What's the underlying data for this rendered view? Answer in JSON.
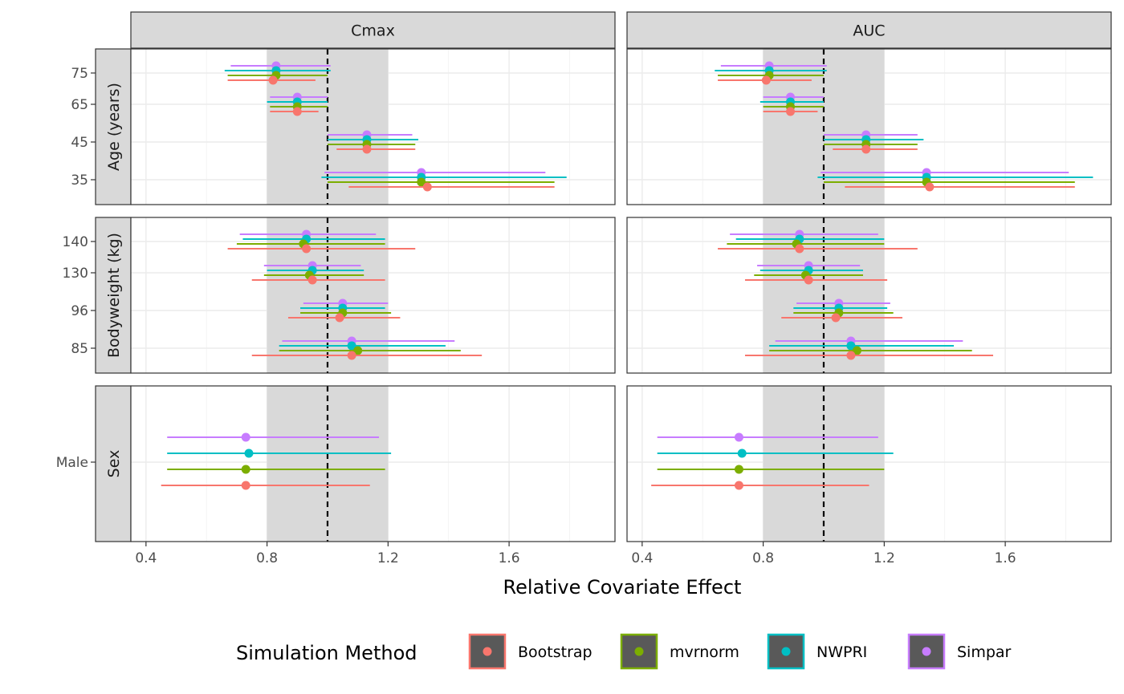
{
  "chart_data": {
    "type": "forest",
    "xlabel": "Relative Covariate Effect",
    "xlim": [
      0.35,
      1.95
    ],
    "x_ticks": [
      "0.4",
      "0.8",
      "1.2",
      "1.6"
    ],
    "x_tick_values": [
      0.4,
      0.8,
      1.2,
      1.6
    ],
    "reference_line": 1.0,
    "reference_band": [
      0.8,
      1.2
    ],
    "grid": true,
    "legend": {
      "title": "Simulation Method",
      "position": "bottom",
      "entries": [
        {
          "name": "Bootstrap",
          "color": "#F8766D"
        },
        {
          "name": "mvrnorm",
          "color": "#7CAE00"
        },
        {
          "name": "NWPRI",
          "color": "#00BFC4"
        },
        {
          "name": "Simpar",
          "color": "#C77CFF"
        }
      ]
    },
    "facet_columns": [
      "Cmax",
      "AUC"
    ],
    "facet_rows": [
      {
        "label": "Age (years)",
        "levels": [
          "75",
          "65",
          "45",
          "35"
        ]
      },
      {
        "label": "Bodyweight (kg)",
        "levels": [
          "140",
          "130",
          "96",
          "85"
        ]
      },
      {
        "label": "Sex",
        "levels": [
          "Male"
        ]
      }
    ],
    "series_order": [
      "Simpar",
      "NWPRI",
      "mvrnorm",
      "Bootstrap"
    ],
    "panels": [
      {
        "column": "Cmax",
        "row": "Age (years)",
        "levels": {
          "75": {
            "Simpar": [
              0.83,
              0.68,
              1.01
            ],
            "NWPRI": [
              0.83,
              0.66,
              1.01
            ],
            "mvrnorm": [
              0.83,
              0.67,
              1.0
            ],
            "Bootstrap": [
              0.82,
              0.67,
              0.96
            ]
          },
          "65": {
            "Simpar": [
              0.9,
              0.81,
              1.0
            ],
            "NWPRI": [
              0.9,
              0.8,
              1.0
            ],
            "mvrnorm": [
              0.9,
              0.81,
              1.0
            ],
            "Bootstrap": [
              0.9,
              0.81,
              0.97
            ]
          },
          "45": {
            "Simpar": [
              1.13,
              1.0,
              1.28
            ],
            "NWPRI": [
              1.13,
              1.0,
              1.3
            ],
            "mvrnorm": [
              1.13,
              1.0,
              1.29
            ],
            "Bootstrap": [
              1.13,
              1.03,
              1.29
            ]
          },
          "35": {
            "Simpar": [
              1.31,
              0.99,
              1.72
            ],
            "NWPRI": [
              1.31,
              0.98,
              1.79
            ],
            "mvrnorm": [
              1.31,
              1.0,
              1.75
            ],
            "Bootstrap": [
              1.33,
              1.07,
              1.75
            ]
          }
        }
      },
      {
        "column": "AUC",
        "row": "Age (years)",
        "levels": {
          "75": {
            "Simpar": [
              0.82,
              0.66,
              1.01
            ],
            "NWPRI": [
              0.82,
              0.64,
              1.01
            ],
            "mvrnorm": [
              0.82,
              0.65,
              1.0
            ],
            "Bootstrap": [
              0.81,
              0.65,
              0.96
            ]
          },
          "65": {
            "Simpar": [
              0.89,
              0.8,
              1.0
            ],
            "NWPRI": [
              0.89,
              0.79,
              1.0
            ],
            "mvrnorm": [
              0.89,
              0.8,
              1.0
            ],
            "Bootstrap": [
              0.89,
              0.8,
              0.98
            ]
          },
          "45": {
            "Simpar": [
              1.14,
              1.0,
              1.31
            ],
            "NWPRI": [
              1.14,
              1.0,
              1.33
            ],
            "mvrnorm": [
              1.14,
              1.0,
              1.31
            ],
            "Bootstrap": [
              1.14,
              1.03,
              1.31
            ]
          },
          "35": {
            "Simpar": [
              1.34,
              0.99,
              1.81
            ],
            "NWPRI": [
              1.34,
              0.98,
              1.89
            ],
            "mvrnorm": [
              1.34,
              1.0,
              1.83
            ],
            "Bootstrap": [
              1.35,
              1.07,
              1.83
            ]
          }
        }
      },
      {
        "column": "Cmax",
        "row": "Bodyweight (kg)",
        "levels": {
          "140": {
            "Simpar": [
              0.93,
              0.71,
              1.16
            ],
            "NWPRI": [
              0.93,
              0.72,
              1.19
            ],
            "mvrnorm": [
              0.92,
              0.7,
              1.19
            ],
            "Bootstrap": [
              0.93,
              0.67,
              1.29
            ]
          },
          "130": {
            "Simpar": [
              0.95,
              0.79,
              1.11
            ],
            "NWPRI": [
              0.95,
              0.8,
              1.12
            ],
            "mvrnorm": [
              0.94,
              0.79,
              1.12
            ],
            "Bootstrap": [
              0.95,
              0.75,
              1.19
            ]
          },
          "96": {
            "Simpar": [
              1.05,
              0.92,
              1.2
            ],
            "NWPRI": [
              1.05,
              0.91,
              1.19
            ],
            "mvrnorm": [
              1.05,
              0.91,
              1.21
            ],
            "Bootstrap": [
              1.04,
              0.87,
              1.24
            ]
          },
          "85": {
            "Simpar": [
              1.08,
              0.85,
              1.42
            ],
            "NWPRI": [
              1.08,
              0.84,
              1.39
            ],
            "mvrnorm": [
              1.1,
              0.84,
              1.44
            ],
            "Bootstrap": [
              1.08,
              0.75,
              1.51
            ]
          }
        }
      },
      {
        "column": "AUC",
        "row": "Bodyweight (kg)",
        "levels": {
          "140": {
            "Simpar": [
              0.92,
              0.69,
              1.18
            ],
            "NWPRI": [
              0.92,
              0.71,
              1.2
            ],
            "mvrnorm": [
              0.91,
              0.68,
              1.2
            ],
            "Bootstrap": [
              0.92,
              0.65,
              1.31
            ]
          },
          "130": {
            "Simpar": [
              0.95,
              0.78,
              1.12
            ],
            "NWPRI": [
              0.95,
              0.79,
              1.13
            ],
            "mvrnorm": [
              0.94,
              0.77,
              1.13
            ],
            "Bootstrap": [
              0.95,
              0.74,
              1.21
            ]
          },
          "96": {
            "Simpar": [
              1.05,
              0.91,
              1.22
            ],
            "NWPRI": [
              1.05,
              0.9,
              1.21
            ],
            "mvrnorm": [
              1.05,
              0.9,
              1.23
            ],
            "Bootstrap": [
              1.04,
              0.86,
              1.26
            ]
          },
          "85": {
            "Simpar": [
              1.09,
              0.84,
              1.46
            ],
            "NWPRI": [
              1.09,
              0.82,
              1.43
            ],
            "mvrnorm": [
              1.11,
              0.82,
              1.49
            ],
            "Bootstrap": [
              1.09,
              0.74,
              1.56
            ]
          }
        }
      },
      {
        "column": "Cmax",
        "row": "Sex",
        "levels": {
          "Male": {
            "Simpar": [
              0.73,
              0.47,
              1.17
            ],
            "NWPRI": [
              0.74,
              0.47,
              1.21
            ],
            "mvrnorm": [
              0.73,
              0.47,
              1.19
            ],
            "Bootstrap": [
              0.73,
              0.45,
              1.14
            ]
          }
        }
      },
      {
        "column": "AUC",
        "row": "Sex",
        "levels": {
          "Male": {
            "Simpar": [
              0.72,
              0.45,
              1.18
            ],
            "NWPRI": [
              0.73,
              0.45,
              1.23
            ],
            "mvrnorm": [
              0.72,
              0.45,
              1.2
            ],
            "Bootstrap": [
              0.72,
              0.43,
              1.15
            ]
          }
        }
      }
    ]
  }
}
